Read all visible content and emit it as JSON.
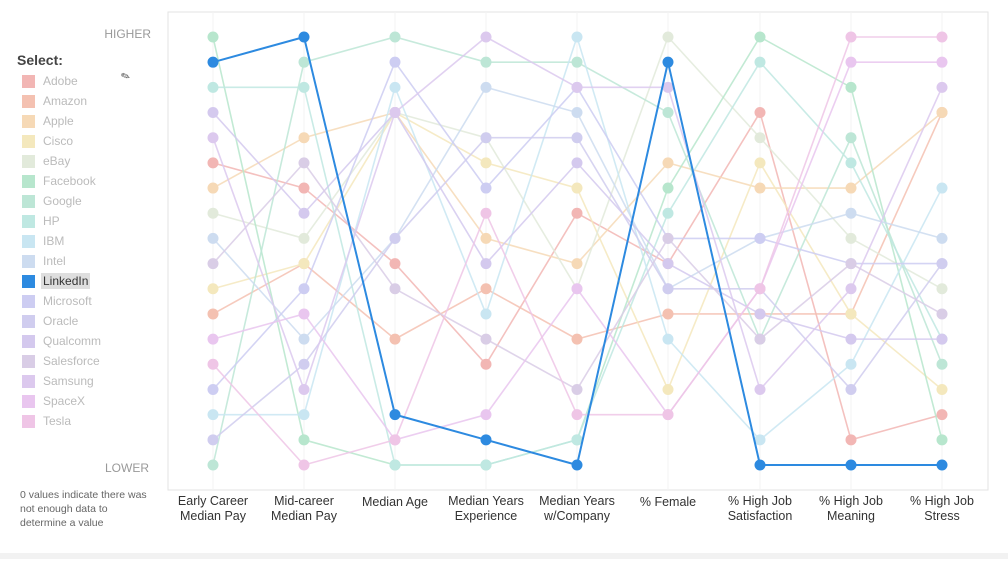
{
  "sidebar": {
    "title": "Select:",
    "items": [
      {
        "label": "Adobe",
        "color": "#f2b6b4"
      },
      {
        "label": "Amazon",
        "color": "#f4c1b1"
      },
      {
        "label": "Apple",
        "color": "#f6d9b6"
      },
      {
        "label": "Cisco",
        "color": "#f4e8bd"
      },
      {
        "label": "eBay",
        "color": "#e2eadb"
      },
      {
        "label": "Facebook",
        "color": "#b7e6cd"
      },
      {
        "label": "Google",
        "color": "#bde6d6"
      },
      {
        "label": "HP",
        "color": "#bfe8e2"
      },
      {
        "label": "IBM",
        "color": "#c9e6f2"
      },
      {
        "label": "Intel",
        "color": "#cddcf0"
      },
      {
        "label": "LinkedIn",
        "color": "#2d8ae0"
      },
      {
        "label": "Microsoft",
        "color": "#cdcdf2"
      },
      {
        "label": "Oracle",
        "color": "#d0cdef"
      },
      {
        "label": "Qualcomm",
        "color": "#d4c9ee"
      },
      {
        "label": "Salesforce",
        "color": "#d9cde6"
      },
      {
        "label": "Samsung",
        "color": "#dcc9ee"
      },
      {
        "label": "SpaceX",
        "color": "#e9c6ef"
      },
      {
        "label": "Tesla",
        "color": "#efc5e6"
      }
    ],
    "selected": "LinkedIn",
    "note": "0 values indicate there was not enough data to determine a value"
  },
  "chart_data": {
    "type": "line",
    "subtype": "parallel-coordinates",
    "y_top_label": "HIGHER",
    "y_bottom_label": "LOWER",
    "ylim": [
      0,
      17
    ],
    "categories": [
      "Early Career|Median Pay",
      "Mid-career|Median Pay",
      "Median Age",
      "Median Years|Experience",
      "Median Years|w/Company",
      "% Female",
      "% High Job|Satisfaction",
      "% High Job|Meaning",
      "% High Job|Stress"
    ],
    "series": [
      {
        "name": "Adobe",
        "values": [
          12,
          11,
          8,
          4,
          10,
          8,
          14,
          1,
          2
        ]
      },
      {
        "name": "Amazon",
        "values": [
          6,
          8,
          5,
          7,
          5,
          6,
          6,
          6,
          14
        ]
      },
      {
        "name": "Apple",
        "values": [
          11,
          13,
          14,
          9,
          8,
          12,
          11,
          11,
          14
        ]
      },
      {
        "name": "Cisco",
        "values": [
          7,
          8,
          14,
          12,
          11,
          3,
          12,
          6,
          3
        ]
      },
      {
        "name": "eBay",
        "values": [
          10,
          9,
          14,
          13,
          7,
          17,
          13,
          9,
          7
        ]
      },
      {
        "name": "Facebook",
        "values": [
          17,
          1,
          0,
          0,
          1,
          11,
          17,
          15,
          1
        ]
      },
      {
        "name": "Google",
        "values": [
          0,
          16,
          17,
          16,
          16,
          14,
          5,
          13,
          4
        ]
      },
      {
        "name": "HP",
        "values": [
          15,
          15,
          0,
          0,
          1,
          10,
          16,
          12,
          5
        ]
      },
      {
        "name": "IBM",
        "values": [
          2,
          2,
          15,
          6,
          17,
          5,
          1,
          4,
          11
        ]
      },
      {
        "name": "Intel",
        "values": [
          9,
          5,
          9,
          15,
          14,
          7,
          9,
          10,
          9
        ]
      },
      {
        "name": "LinkedIn",
        "values": [
          16,
          17,
          2,
          1,
          0,
          16,
          0,
          0,
          0
        ]
      },
      {
        "name": "Microsoft",
        "values": [
          3,
          7,
          16,
          11,
          15,
          9,
          9,
          8,
          8
        ]
      },
      {
        "name": "Oracle",
        "values": [
          1,
          4,
          9,
          13,
          13,
          7,
          7,
          3,
          8
        ]
      },
      {
        "name": "Qualcomm",
        "values": [
          14,
          10,
          14,
          8,
          12,
          8,
          6,
          5,
          5
        ]
      },
      {
        "name": "Salesforce",
        "values": [
          8,
          12,
          7,
          5,
          3,
          9,
          5,
          8,
          6
        ]
      },
      {
        "name": "Samsung",
        "values": [
          13,
          3,
          14,
          17,
          15,
          15,
          3,
          7,
          15
        ]
      },
      {
        "name": "SpaceX",
        "values": [
          5,
          6,
          1,
          2,
          7,
          2,
          7,
          16,
          16
        ]
      },
      {
        "name": "Tesla",
        "values": [
          4,
          0,
          1,
          10,
          2,
          2,
          7,
          17,
          17
        ]
      }
    ]
  }
}
